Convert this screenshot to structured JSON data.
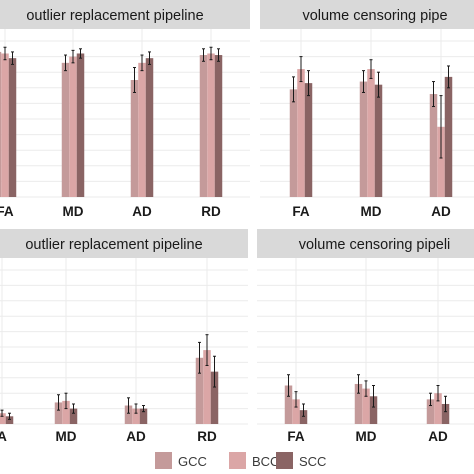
{
  "colors": {
    "panel_bg": "#ffffff",
    "strip_bg": "#d9d9d9",
    "grid": "#ebebeb",
    "error_bar": "#1a1a1a",
    "GCC": "#c49a9a",
    "BCC": "#dba6a6",
    "SCC": "#8a6464"
  },
  "legend": {
    "items": [
      {
        "key": "GCC",
        "label": "GCC"
      },
      {
        "key": "BCC",
        "label": "BCC"
      },
      {
        "key": "SCC",
        "label": "SCC"
      }
    ]
  },
  "chart_data": [
    {
      "type": "bar",
      "title": "outlier replacement pipeline",
      "categories": [
        "FA",
        "MD",
        "AD",
        "RD"
      ],
      "ylim": [
        0,
        1
      ],
      "series": [
        {
          "name": "GCC",
          "values": [
            0.93,
            0.86,
            0.75,
            0.91
          ],
          "errors": [
            0.04,
            0.05,
            0.08,
            0.04
          ]
        },
        {
          "name": "BCC",
          "values": [
            0.92,
            0.9,
            0.86,
            0.92
          ],
          "errors": [
            0.04,
            0.04,
            0.05,
            0.04
          ]
        },
        {
          "name": "SCC",
          "values": [
            0.89,
            0.92,
            0.89,
            0.91
          ],
          "errors": [
            0.04,
            0.03,
            0.04,
            0.04
          ]
        }
      ]
    },
    {
      "type": "bar",
      "title": "volume censoring pipe",
      "categories": [
        "FA",
        "MD",
        "AD"
      ],
      "ylim": [
        0,
        1
      ],
      "series": [
        {
          "name": "GCC",
          "values": [
            0.69,
            0.74,
            0.66
          ],
          "errors": [
            0.08,
            0.07,
            0.08
          ]
        },
        {
          "name": "BCC",
          "values": [
            0.82,
            0.82,
            0.45
          ],
          "errors": [
            0.08,
            0.06,
            0.2
          ]
        },
        {
          "name": "SCC",
          "values": [
            0.73,
            0.72,
            0.77
          ],
          "errors": [
            0.08,
            0.08,
            0.07
          ]
        }
      ]
    },
    {
      "type": "bar",
      "title": "outlier replacement pipeline",
      "categories": [
        "A",
        "MD",
        "AD",
        "RD"
      ],
      "ylim": [
        0,
        1
      ],
      "series": [
        {
          "name": "GCC",
          "values": [
            0.03,
            0.14,
            0.12,
            0.43
          ],
          "errors": [
            0.02,
            0.05,
            0.05,
            0.1
          ]
        },
        {
          "name": "BCC",
          "values": [
            0.07,
            0.15,
            0.1,
            0.48
          ],
          "errors": [
            0.02,
            0.05,
            0.03,
            0.1
          ]
        },
        {
          "name": "SCC",
          "values": [
            0.05,
            0.1,
            0.1,
            0.34
          ],
          "errors": [
            0.02,
            0.03,
            0.02,
            0.1
          ]
        }
      ]
    },
    {
      "type": "bar",
      "title": "volume censoring pipeli",
      "categories": [
        "FA",
        "MD",
        "AD"
      ],
      "ylim": [
        0,
        1
      ],
      "series": [
        {
          "name": "GCC",
          "values": [
            0.25,
            0.26,
            0.16
          ],
          "errors": [
            0.07,
            0.06,
            0.04
          ]
        },
        {
          "name": "BCC",
          "values": [
            0.16,
            0.23,
            0.2
          ],
          "errors": [
            0.05,
            0.05,
            0.05
          ]
        },
        {
          "name": "SCC",
          "values": [
            0.09,
            0.18,
            0.13
          ],
          "errors": [
            0.04,
            0.07,
            0.05
          ]
        }
      ]
    }
  ]
}
